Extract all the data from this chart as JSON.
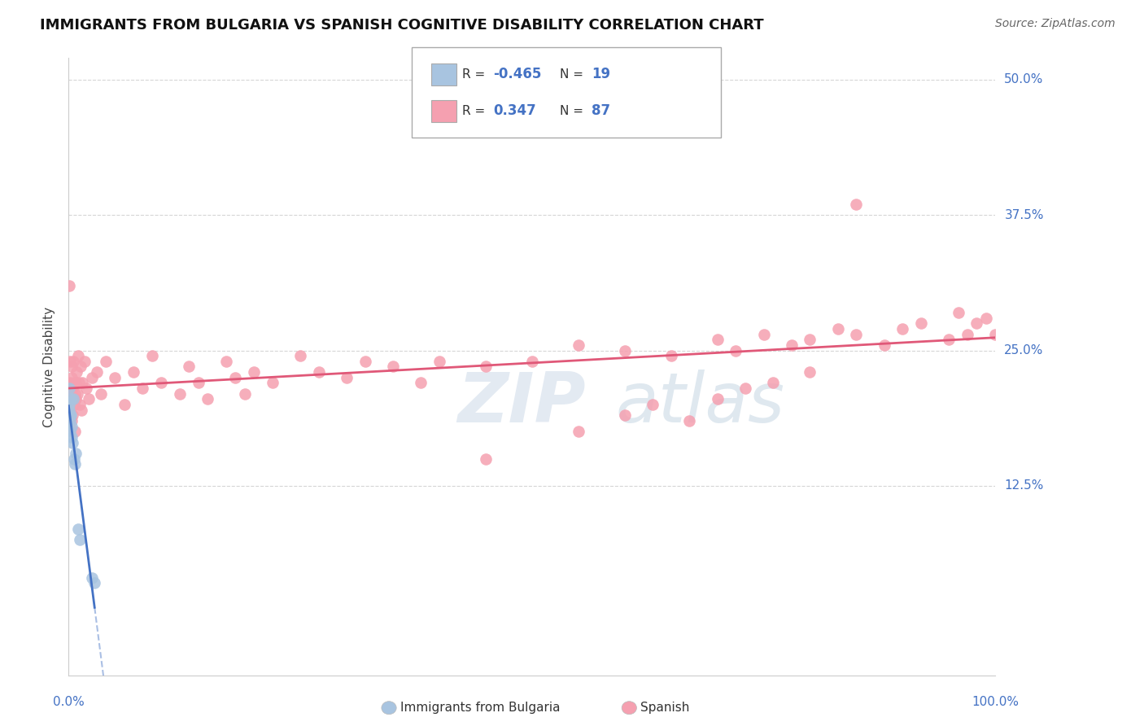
{
  "title": "IMMIGRANTS FROM BULGARIA VS SPANISH COGNITIVE DISABILITY CORRELATION CHART",
  "source": "Source: ZipAtlas.com",
  "ylabel": "Cognitive Disability",
  "ytick_labels": [
    "12.5%",
    "25.0%",
    "37.5%",
    "50.0%"
  ],
  "ytick_values": [
    12.5,
    25.0,
    37.5,
    50.0
  ],
  "xlim": [
    0.0,
    100.0
  ],
  "ylim": [
    0.0,
    50.0
  ],
  "legend_r_bulgaria": "-0.465",
  "legend_n_bulgaria": "19",
  "legend_r_spanish": "0.347",
  "legend_n_spanish": "87",
  "color_bulgaria": "#a8c4e0",
  "color_spanish": "#f5a0b0",
  "color_line_bulgaria": "#4472c4",
  "color_line_spanish": "#e05878",
  "color_axis_labels": "#4472c4",
  "background_color": "#ffffff",
  "bulgaria_x": [
    0.05,
    0.08,
    0.1,
    0.12,
    0.15,
    0.18,
    0.2,
    0.25,
    0.3,
    0.35,
    0.4,
    0.5,
    0.6,
    0.7,
    0.8,
    1.0,
    1.2,
    2.5,
    2.8
  ],
  "bulgaria_y": [
    19.5,
    20.0,
    21.5,
    19.0,
    18.5,
    17.5,
    20.5,
    19.0,
    18.0,
    17.0,
    16.5,
    20.5,
    15.0,
    14.5,
    15.5,
    8.5,
    7.5,
    4.0,
    3.5
  ],
  "spanish_x": [
    0.08,
    0.1,
    0.12,
    0.15,
    0.18,
    0.2,
    0.25,
    0.28,
    0.3,
    0.35,
    0.4,
    0.45,
    0.5,
    0.55,
    0.6,
    0.65,
    0.7,
    0.75,
    0.8,
    0.85,
    0.9,
    1.0,
    1.1,
    1.2,
    1.3,
    1.4,
    1.5,
    1.7,
    1.9,
    2.2,
    2.5,
    3.0,
    3.5,
    4.0,
    5.0,
    6.0,
    7.0,
    8.0,
    9.0,
    10.0,
    12.0,
    13.0,
    14.0,
    15.0,
    17.0,
    18.0,
    19.0,
    20.0,
    22.0,
    25.0,
    27.0,
    30.0,
    32.0,
    35.0,
    38.0,
    40.0,
    45.0,
    50.0,
    55.0,
    60.0,
    65.0,
    70.0,
    72.0,
    75.0,
    78.0,
    80.0,
    83.0,
    85.0,
    88.0,
    90.0,
    92.0,
    95.0,
    96.0,
    97.0,
    98.0,
    99.0,
    100.0,
    45.0,
    55.0,
    60.0,
    63.0,
    67.0,
    70.0,
    73.0,
    76.0,
    80.0,
    85.0
  ],
  "spanish_y": [
    20.0,
    31.0,
    22.0,
    24.0,
    19.5,
    21.0,
    20.5,
    22.5,
    18.5,
    23.5,
    21.5,
    19.0,
    24.0,
    20.0,
    22.0,
    21.0,
    17.5,
    22.0,
    20.5,
    23.0,
    21.0,
    24.5,
    22.0,
    20.0,
    23.5,
    19.5,
    22.0,
    24.0,
    21.5,
    20.5,
    22.5,
    23.0,
    21.0,
    24.0,
    22.5,
    20.0,
    23.0,
    21.5,
    24.5,
    22.0,
    21.0,
    23.5,
    22.0,
    20.5,
    24.0,
    22.5,
    21.0,
    23.0,
    22.0,
    24.5,
    23.0,
    22.5,
    24.0,
    23.5,
    22.0,
    24.0,
    23.5,
    24.0,
    25.5,
    25.0,
    24.5,
    26.0,
    25.0,
    26.5,
    25.5,
    26.0,
    27.0,
    26.5,
    25.5,
    27.0,
    27.5,
    26.0,
    28.5,
    26.5,
    27.5,
    28.0,
    26.5,
    15.0,
    17.5,
    19.0,
    20.0,
    18.5,
    20.5,
    21.5,
    22.0,
    23.0,
    38.5
  ]
}
